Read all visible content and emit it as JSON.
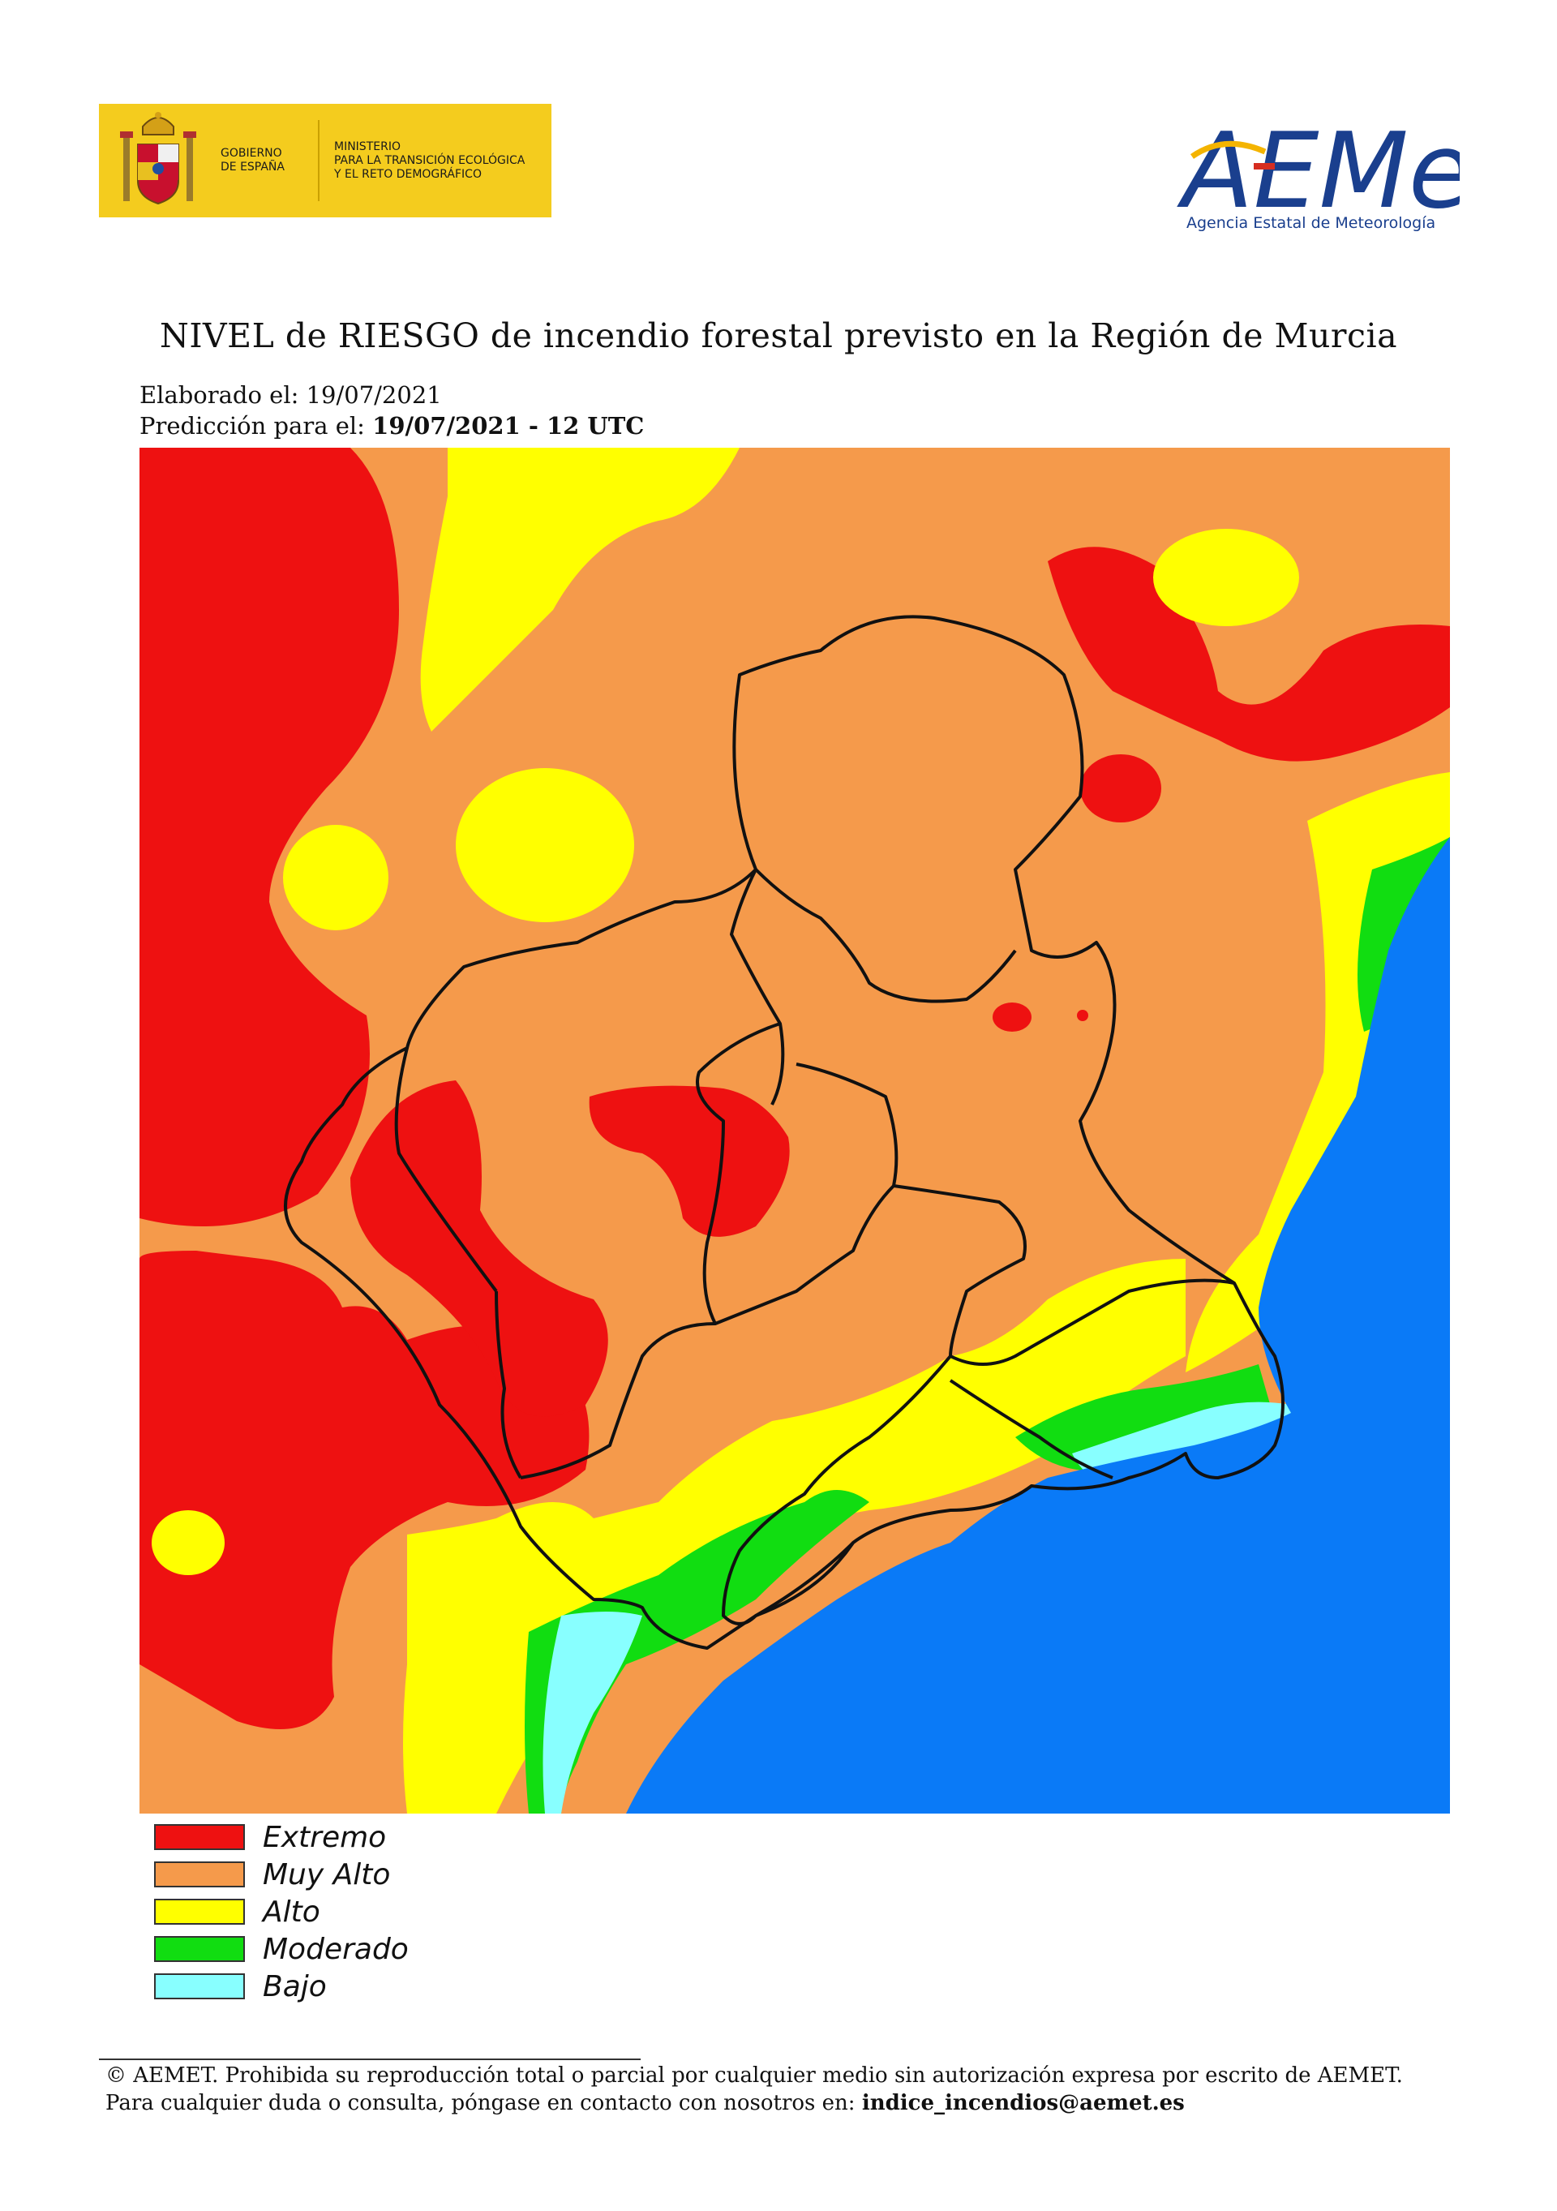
{
  "header": {
    "gov_logo_text": "GOBIERNO\nDE ESPAÑA",
    "ministry_text": "MINISTERIO\nPARA LA TRANSICIÓN ECOLÓGICA\nY EL RETO DEMOGRÁFICO",
    "agency_logo_text": "AEMet",
    "agency_name": "Agencia Estatal de Meteorología"
  },
  "title": "NIVEL de RIESGO de incendio forestal previsto en la Región de Murcia",
  "elaborated": {
    "label": "Elaborado el:",
    "value": "19/07/2021"
  },
  "prediction": {
    "label": "Predicción para el:",
    "value": "19/07/2021 - 12 UTC"
  },
  "legend": [
    {
      "label": "Extremo",
      "color": "#ee1111"
    },
    {
      "label": "Muy Alto",
      "color": "#f59a4b"
    },
    {
      "label": "Alto",
      "color": "#ffff00"
    },
    {
      "label": "Moderado",
      "color": "#11dd11"
    },
    {
      "label": "Bajo",
      "color": "#88ffff"
    }
  ],
  "map_colors": {
    "sea": "#0a7af7",
    "boundary": "#111111"
  },
  "footer": {
    "line1": "© AEMET. Prohibida su reproducción total o parcial por cualquier medio sin autorización expresa por escrito de AEMET.",
    "line2_label": "Para cualquier duda o consulta, póngase en contacto con nosotros en:",
    "email": "indice_incendios@aemet.es"
  }
}
